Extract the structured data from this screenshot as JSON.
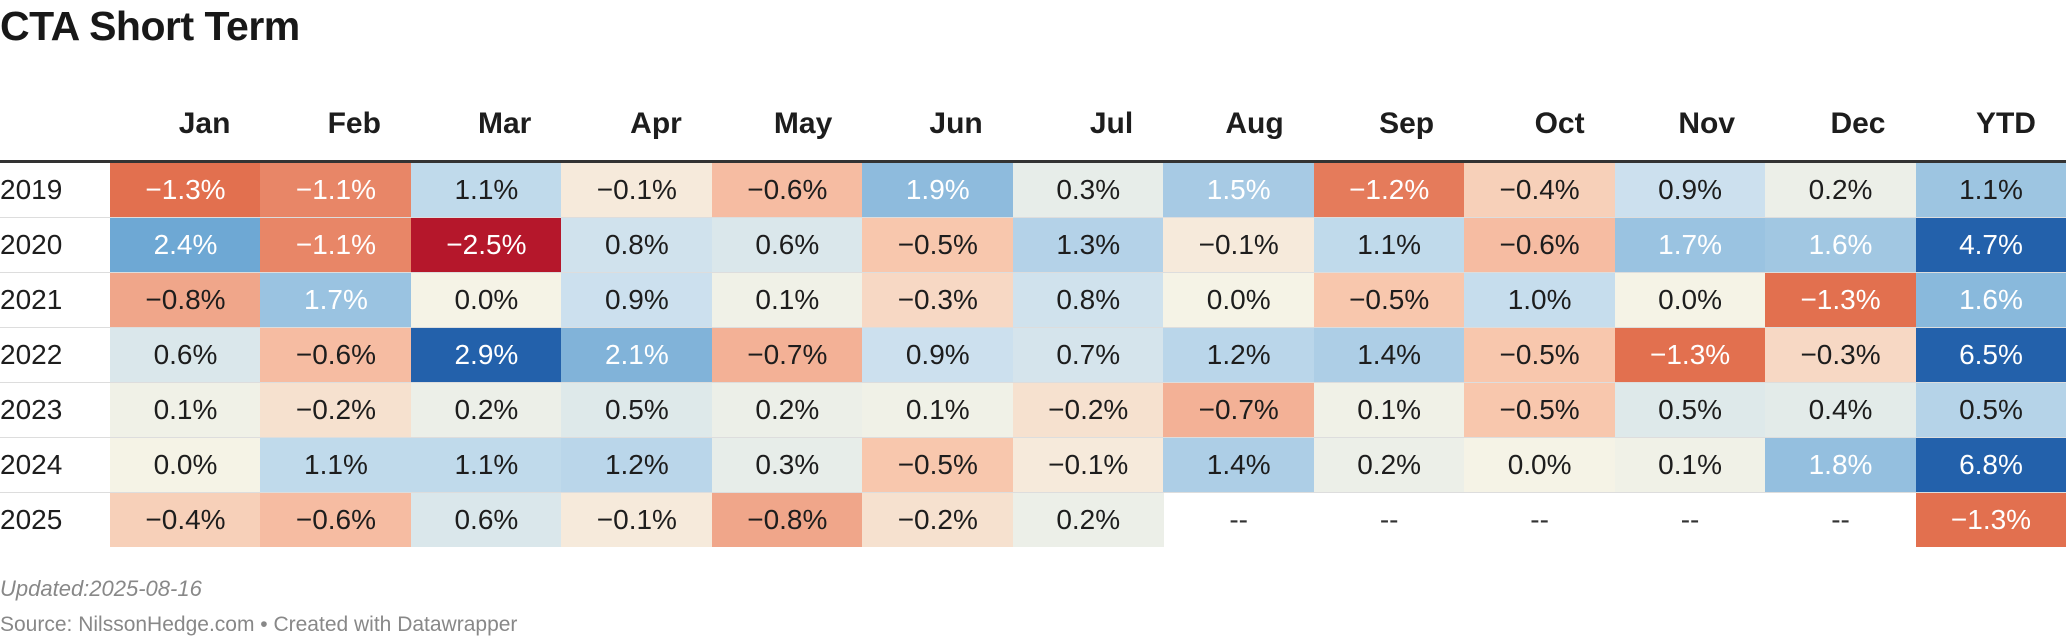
{
  "title": "CTA Short Term",
  "footer": {
    "updated": "Updated:2025-08-16",
    "source": "Source: NilssonHedge.com • Created with Datawrapper"
  },
  "chart_data": {
    "type": "heatmap",
    "title": "CTA Short Term",
    "columns": [
      "Jan",
      "Feb",
      "Mar",
      "Apr",
      "May",
      "Jun",
      "Jul",
      "Aug",
      "Sep",
      "Oct",
      "Nov",
      "Dec",
      "YTD"
    ],
    "rows": [
      "2019",
      "2020",
      "2021",
      "2022",
      "2023",
      "2024",
      "2025"
    ],
    "cells": [
      [
        "−1.3%",
        "−1.1%",
        "1.1%",
        "−0.1%",
        "−0.6%",
        "1.9%",
        "0.3%",
        "1.5%",
        "−1.2%",
        "−0.4%",
        "0.9%",
        "0.2%",
        "1.1%"
      ],
      [
        "2.4%",
        "−1.1%",
        "−2.5%",
        "0.8%",
        "0.6%",
        "−0.5%",
        "1.3%",
        "−0.1%",
        "1.1%",
        "−0.6%",
        "1.7%",
        "1.6%",
        "4.7%"
      ],
      [
        "−0.8%",
        "1.7%",
        "0.0%",
        "0.9%",
        "0.1%",
        "−0.3%",
        "0.8%",
        "0.0%",
        "−0.5%",
        "1.0%",
        "0.0%",
        "−1.3%",
        "1.6%"
      ],
      [
        "0.6%",
        "−0.6%",
        "2.9%",
        "2.1%",
        "−0.7%",
        "0.9%",
        "0.7%",
        "1.2%",
        "1.4%",
        "−0.5%",
        "−1.3%",
        "−0.3%",
        "6.5%"
      ],
      [
        "0.1%",
        "−0.2%",
        "0.2%",
        "0.5%",
        "0.2%",
        "0.1%",
        "−0.2%",
        "−0.7%",
        "0.1%",
        "−0.5%",
        "0.5%",
        "0.4%",
        "0.5%"
      ],
      [
        "0.0%",
        "1.1%",
        "1.1%",
        "1.2%",
        "0.3%",
        "−0.5%",
        "−0.1%",
        "1.4%",
        "0.2%",
        "0.0%",
        "0.1%",
        "1.8%",
        "6.8%"
      ],
      [
        "−0.4%",
        "−0.6%",
        "0.6%",
        "−0.1%",
        "−0.8%",
        "−0.2%",
        "0.2%",
        "--",
        "--",
        "--",
        "--",
        "--",
        "−1.3%"
      ]
    ],
    "values": [
      [
        -1.3,
        -1.1,
        1.1,
        -0.1,
        -0.6,
        1.9,
        0.3,
        1.5,
        -1.2,
        -0.4,
        0.9,
        0.2,
        1.1
      ],
      [
        2.4,
        -1.1,
        -2.5,
        0.8,
        0.6,
        -0.5,
        1.3,
        -0.1,
        1.1,
        -0.6,
        1.7,
        1.6,
        4.7
      ],
      [
        -0.8,
        1.7,
        0.0,
        0.9,
        0.1,
        -0.3,
        0.8,
        0.0,
        -0.5,
        1.0,
        0.0,
        -1.3,
        1.6
      ],
      [
        0.6,
        -0.6,
        2.9,
        2.1,
        -0.7,
        0.9,
        0.7,
        1.2,
        1.4,
        -0.5,
        -1.3,
        -0.3,
        6.5
      ],
      [
        0.1,
        -0.2,
        0.2,
        0.5,
        0.2,
        0.1,
        -0.2,
        -0.7,
        0.1,
        -0.5,
        0.5,
        0.4,
        0.5
      ],
      [
        0.0,
        1.1,
        1.1,
        1.2,
        0.3,
        -0.5,
        -0.1,
        1.4,
        0.2,
        0.0,
        0.1,
        1.8,
        6.8
      ],
      [
        -0.4,
        -0.6,
        0.6,
        -0.1,
        -0.8,
        -0.2,
        0.2,
        null,
        null,
        null,
        null,
        null,
        -1.3
      ]
    ],
    "colors": {
      "negative_max": "#b5172b",
      "negative_strong": "#e2704f",
      "negative_light": "#f8c5ab",
      "neutral": "#f5f3e6",
      "positive_light": "#c9dfee",
      "positive_strong": "#6ea8d4",
      "positive_max": "#2361ab"
    }
  }
}
